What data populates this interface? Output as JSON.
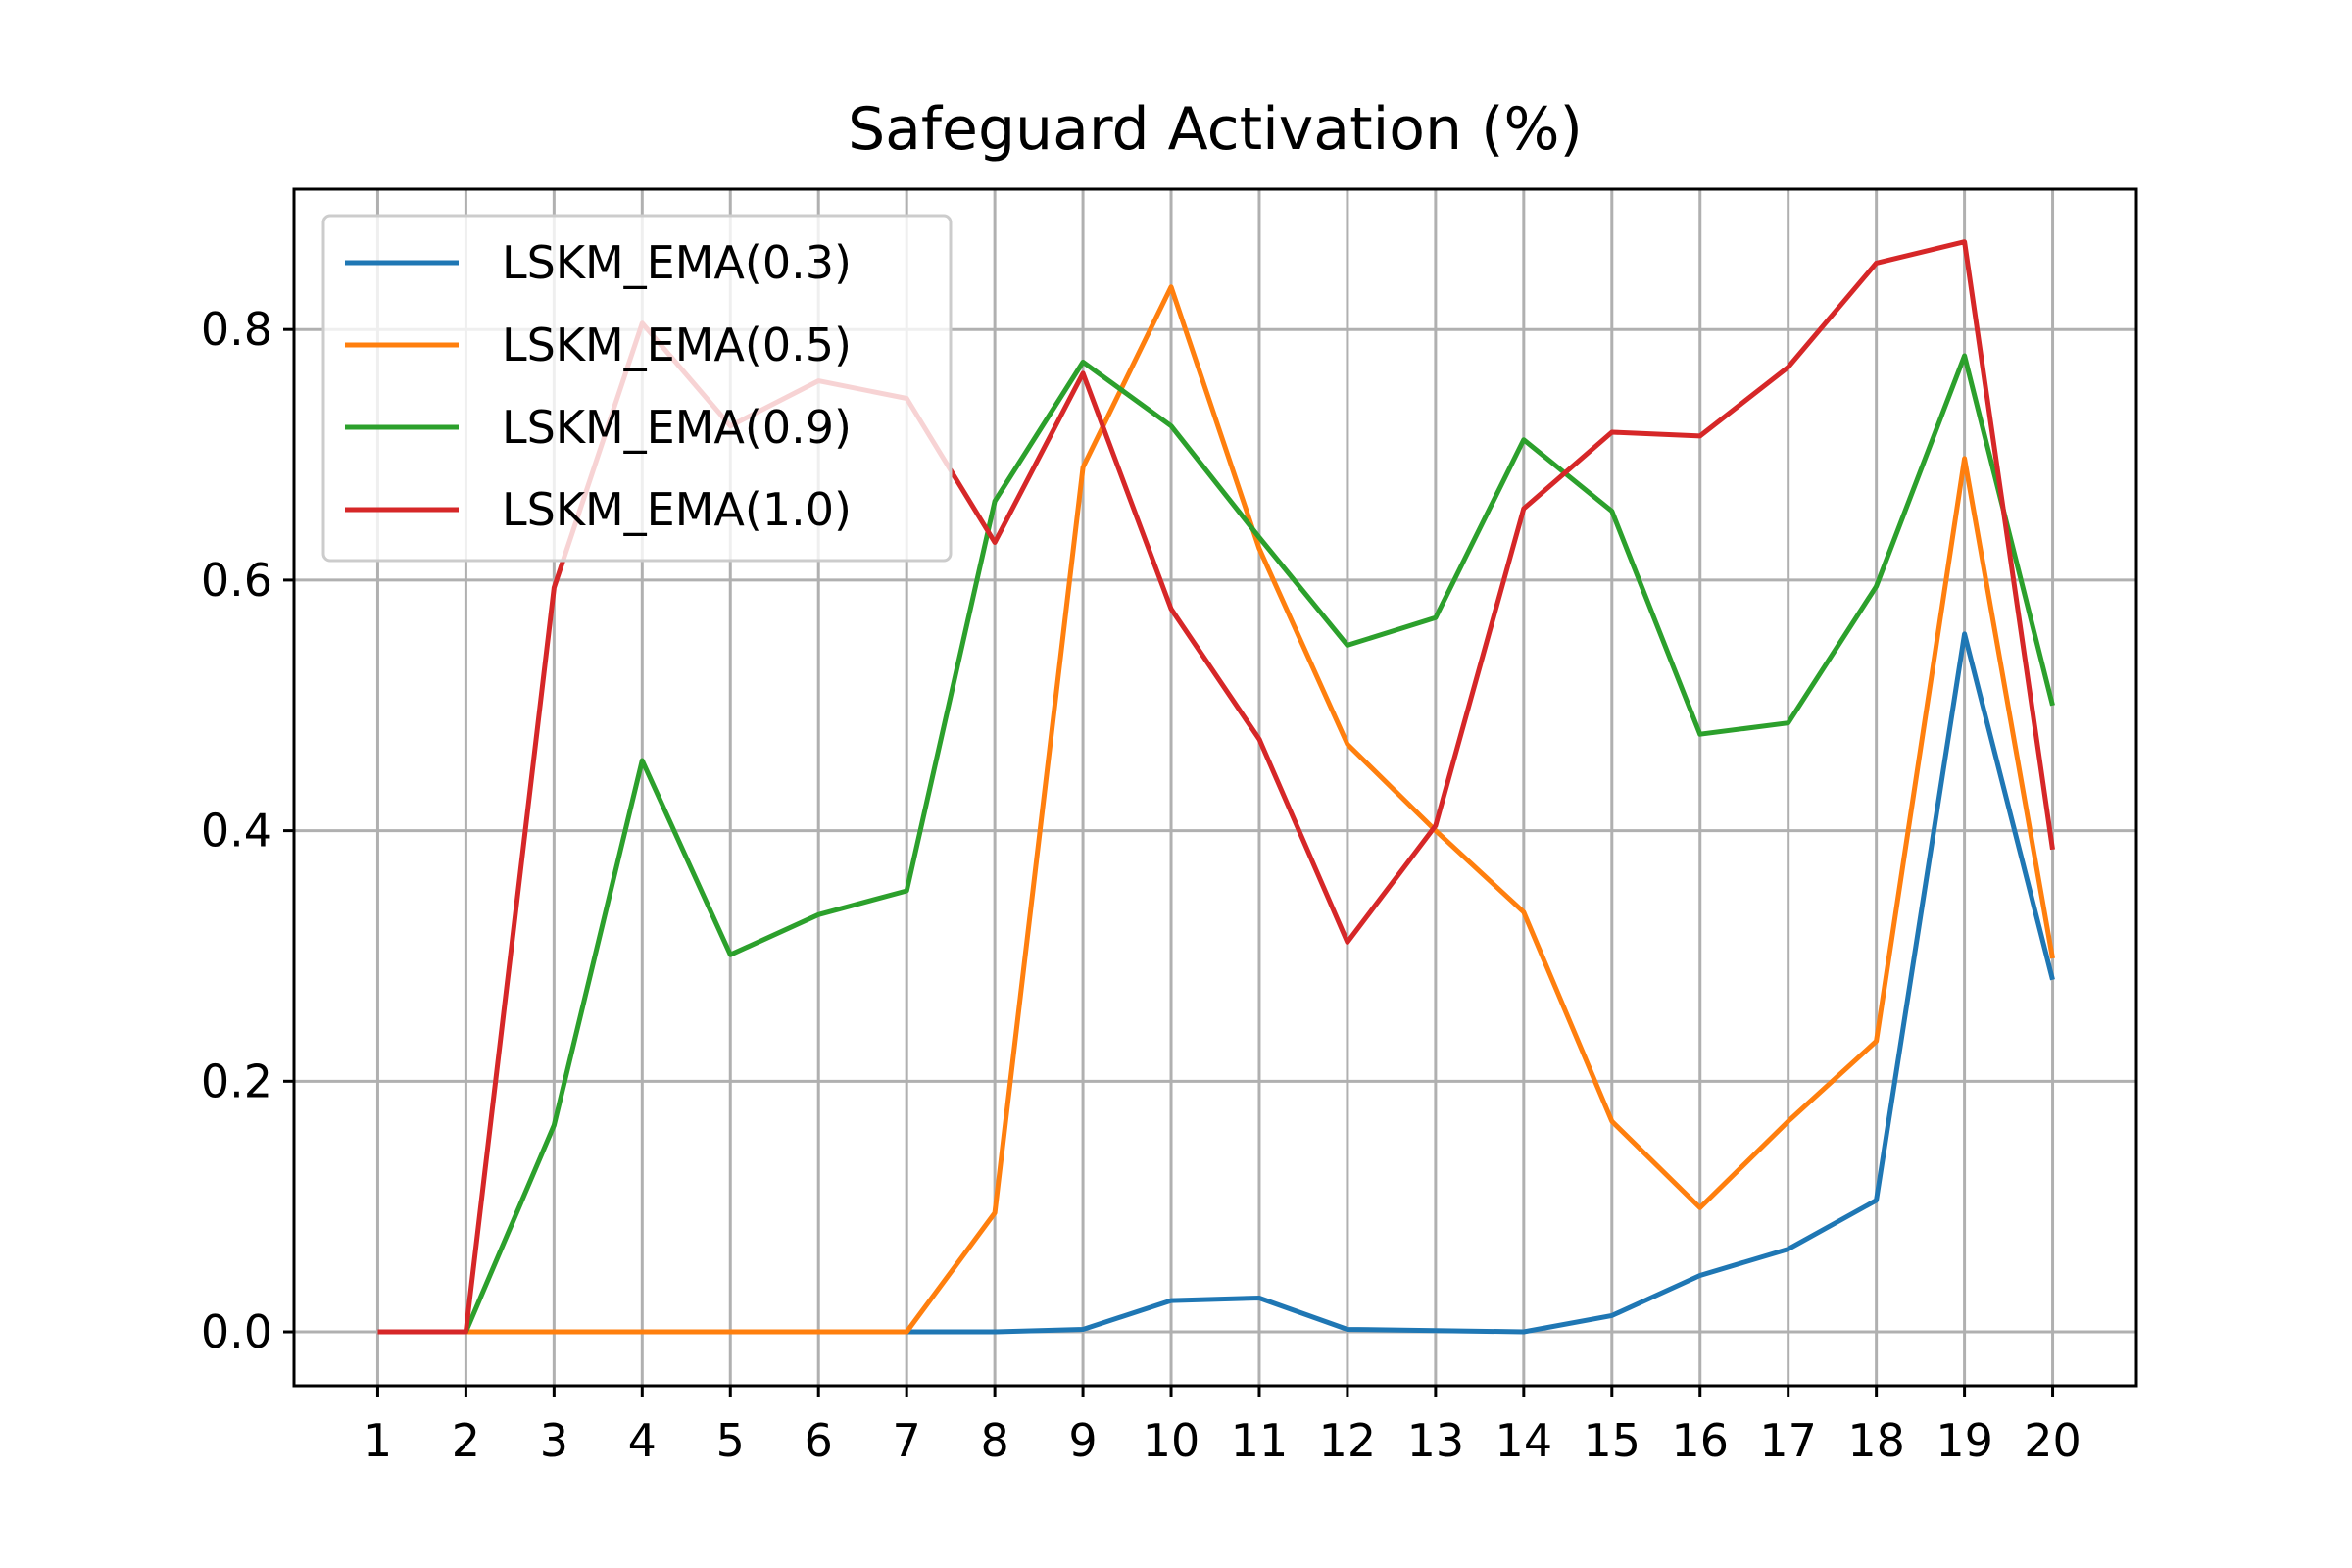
{
  "chart_data": {
    "type": "line",
    "title": "Safeguard Activation (%)",
    "xlabel": "",
    "ylabel": "",
    "x": [
      1,
      2,
      3,
      4,
      5,
      6,
      7,
      8,
      9,
      10,
      11,
      12,
      13,
      14,
      15,
      16,
      17,
      18,
      19,
      20
    ],
    "x_tick_labels": [
      "1",
      "2",
      "3",
      "4",
      "5",
      "6",
      "7",
      "8",
      "9",
      "10",
      "11",
      "12",
      "13",
      "14",
      "15",
      "16",
      "17",
      "18",
      "19",
      "20"
    ],
    "y_ticks": [
      0.0,
      0.2,
      0.4,
      0.6,
      0.8
    ],
    "y_tick_labels": [
      "0.0",
      "0.2",
      "0.4",
      "0.6",
      "0.8"
    ],
    "xlim": [
      0.05,
      20.95
    ],
    "ylim": [
      -0.043,
      0.912
    ],
    "grid": true,
    "legend_position": "upper-left",
    "series": [
      {
        "name": "LSKM_EMA(0.3)",
        "color": "#1f77b4",
        "values": [
          0,
          0,
          0,
          0,
          0,
          0,
          0,
          0,
          0.002,
          0.025,
          0.027,
          0.002,
          0.001,
          0,
          0.013,
          0.045,
          0.066,
          0.105,
          0.557,
          0.281
        ]
      },
      {
        "name": "LSKM_EMA(0.5)",
        "color": "#ff7f0e",
        "values": [
          0,
          0,
          0,
          0,
          0,
          0,
          0,
          0.095,
          0.69,
          0.834,
          0.625,
          0.469,
          0.4,
          0.335,
          0.168,
          0.099,
          0.168,
          0.232,
          0.697,
          0.298
        ]
      },
      {
        "name": "LSKM_EMA(0.9)",
        "color": "#2ca02c",
        "values": [
          0,
          0,
          0.165,
          0.456,
          0.301,
          0.333,
          0.352,
          0.663,
          0.774,
          0.723,
          0.634,
          0.548,
          0.57,
          0.712,
          0.655,
          0.477,
          0.486,
          0.595,
          0.779,
          0.5
        ]
      },
      {
        "name": "LSKM_EMA(1.0)",
        "color": "#d62728",
        "values": [
          0,
          0,
          0.594,
          0.805,
          0.723,
          0.759,
          0.745,
          0.63,
          0.765,
          0.577,
          0.473,
          0.311,
          0.404,
          0.657,
          0.718,
          0.715,
          0.77,
          0.853,
          0.87,
          0.385
        ]
      }
    ]
  }
}
